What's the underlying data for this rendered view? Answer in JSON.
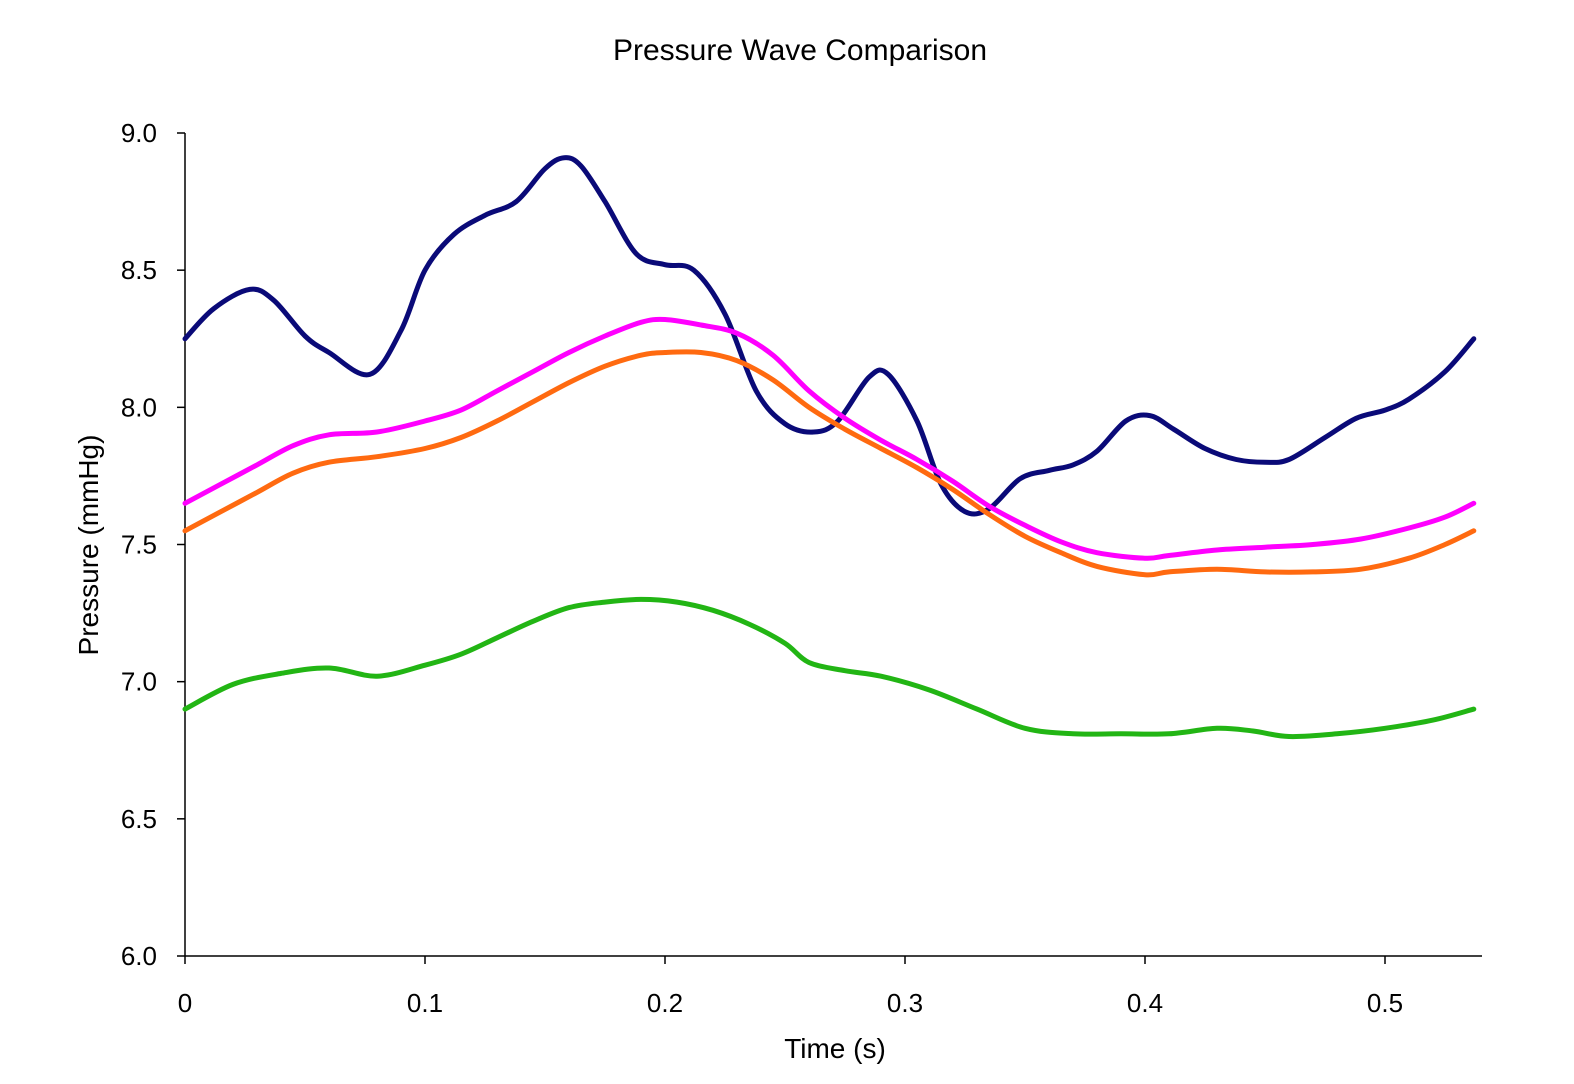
{
  "chart_data": {
    "type": "line",
    "title": "Pressure Wave Comparison",
    "xlabel": "Time (s)",
    "ylabel": "Pressure (mmHg)",
    "xlim": [
      0,
      0.54
    ],
    "ylim": [
      6.0,
      9.0
    ],
    "x_ticks": [
      "0",
      "0.1",
      "0.2",
      "0.3",
      "0.4",
      "0.5"
    ],
    "x_tick_values": [
      0,
      0.1,
      0.2,
      0.3,
      0.4,
      0.5
    ],
    "y_ticks": [
      "6.0",
      "6.5",
      "7.0",
      "7.5",
      "8.0",
      "8.5",
      "9.0"
    ],
    "y_tick_values": [
      6.0,
      6.5,
      7.0,
      7.5,
      8.0,
      8.5,
      9.0
    ],
    "grid": false,
    "legend": "none",
    "series": [
      {
        "color": "#0a0a78",
        "points": [
          [
            0,
            8.25
          ],
          [
            0.012,
            8.36
          ],
          [
            0.027,
            8.43
          ],
          [
            0.037,
            8.39
          ],
          [
            0.05,
            8.26
          ],
          [
            0.06,
            8.2
          ],
          [
            0.077,
            8.12
          ],
          [
            0.09,
            8.28
          ],
          [
            0.1,
            8.5
          ],
          [
            0.112,
            8.63
          ],
          [
            0.125,
            8.7
          ],
          [
            0.138,
            8.75
          ],
          [
            0.15,
            8.87
          ],
          [
            0.158,
            8.91
          ],
          [
            0.165,
            8.88
          ],
          [
            0.175,
            8.75
          ],
          [
            0.188,
            8.56
          ],
          [
            0.2,
            8.52
          ],
          [
            0.212,
            8.5
          ],
          [
            0.225,
            8.34
          ],
          [
            0.238,
            8.06
          ],
          [
            0.25,
            7.94
          ],
          [
            0.262,
            7.91
          ],
          [
            0.272,
            7.95
          ],
          [
            0.285,
            8.11
          ],
          [
            0.293,
            8.12
          ],
          [
            0.305,
            7.95
          ],
          [
            0.315,
            7.72
          ],
          [
            0.325,
            7.62
          ],
          [
            0.335,
            7.63
          ],
          [
            0.348,
            7.74
          ],
          [
            0.36,
            7.77
          ],
          [
            0.37,
            7.79
          ],
          [
            0.38,
            7.84
          ],
          [
            0.392,
            7.95
          ],
          [
            0.402,
            7.97
          ],
          [
            0.412,
            7.92
          ],
          [
            0.425,
            7.85
          ],
          [
            0.438,
            7.81
          ],
          [
            0.45,
            7.8
          ],
          [
            0.46,
            7.81
          ],
          [
            0.475,
            7.89
          ],
          [
            0.488,
            7.96
          ],
          [
            0.5,
            7.99
          ],
          [
            0.51,
            8.03
          ],
          [
            0.525,
            8.13
          ],
          [
            0.537,
            8.25
          ]
        ]
      },
      {
        "color": "#ff00ff",
        "points": [
          [
            0,
            7.65
          ],
          [
            0.015,
            7.72
          ],
          [
            0.03,
            7.79
          ],
          [
            0.045,
            7.86
          ],
          [
            0.06,
            7.9
          ],
          [
            0.08,
            7.91
          ],
          [
            0.1,
            7.95
          ],
          [
            0.115,
            7.99
          ],
          [
            0.13,
            8.06
          ],
          [
            0.145,
            8.13
          ],
          [
            0.16,
            8.2
          ],
          [
            0.175,
            8.26
          ],
          [
            0.19,
            8.31
          ],
          [
            0.2,
            8.32
          ],
          [
            0.215,
            8.3
          ],
          [
            0.23,
            8.27
          ],
          [
            0.245,
            8.19
          ],
          [
            0.26,
            8.06
          ],
          [
            0.275,
            7.96
          ],
          [
            0.29,
            7.88
          ],
          [
            0.305,
            7.81
          ],
          [
            0.32,
            7.73
          ],
          [
            0.335,
            7.64
          ],
          [
            0.35,
            7.57
          ],
          [
            0.365,
            7.51
          ],
          [
            0.38,
            7.47
          ],
          [
            0.4,
            7.45
          ],
          [
            0.41,
            7.46
          ],
          [
            0.43,
            7.48
          ],
          [
            0.45,
            7.49
          ],
          [
            0.47,
            7.5
          ],
          [
            0.49,
            7.52
          ],
          [
            0.51,
            7.56
          ],
          [
            0.525,
            7.6
          ],
          [
            0.537,
            7.65
          ]
        ]
      },
      {
        "color": "#ff6a10",
        "points": [
          [
            0,
            7.55
          ],
          [
            0.015,
            7.62
          ],
          [
            0.03,
            7.69
          ],
          [
            0.045,
            7.76
          ],
          [
            0.06,
            7.8
          ],
          [
            0.08,
            7.82
          ],
          [
            0.1,
            7.85
          ],
          [
            0.115,
            7.89
          ],
          [
            0.13,
            7.95
          ],
          [
            0.145,
            8.02
          ],
          [
            0.16,
            8.09
          ],
          [
            0.175,
            8.15
          ],
          [
            0.19,
            8.19
          ],
          [
            0.2,
            8.2
          ],
          [
            0.215,
            8.2
          ],
          [
            0.23,
            8.17
          ],
          [
            0.245,
            8.1
          ],
          [
            0.26,
            8.0
          ],
          [
            0.275,
            7.92
          ],
          [
            0.29,
            7.85
          ],
          [
            0.305,
            7.78
          ],
          [
            0.32,
            7.7
          ],
          [
            0.335,
            7.61
          ],
          [
            0.35,
            7.53
          ],
          [
            0.365,
            7.47
          ],
          [
            0.38,
            7.42
          ],
          [
            0.4,
            7.39
          ],
          [
            0.41,
            7.4
          ],
          [
            0.43,
            7.41
          ],
          [
            0.45,
            7.4
          ],
          [
            0.47,
            7.4
          ],
          [
            0.49,
            7.41
          ],
          [
            0.51,
            7.45
          ],
          [
            0.525,
            7.5
          ],
          [
            0.537,
            7.55
          ]
        ]
      },
      {
        "color": "#22b514",
        "points": [
          [
            0,
            6.9
          ],
          [
            0.02,
            6.99
          ],
          [
            0.04,
            7.03
          ],
          [
            0.06,
            7.05
          ],
          [
            0.08,
            7.02
          ],
          [
            0.1,
            7.06
          ],
          [
            0.115,
            7.1
          ],
          [
            0.13,
            7.16
          ],
          [
            0.145,
            7.22
          ],
          [
            0.16,
            7.27
          ],
          [
            0.175,
            7.29
          ],
          [
            0.19,
            7.3
          ],
          [
            0.205,
            7.29
          ],
          [
            0.22,
            7.26
          ],
          [
            0.235,
            7.21
          ],
          [
            0.25,
            7.14
          ],
          [
            0.26,
            7.07
          ],
          [
            0.275,
            7.04
          ],
          [
            0.29,
            7.02
          ],
          [
            0.31,
            6.97
          ],
          [
            0.33,
            6.9
          ],
          [
            0.35,
            6.83
          ],
          [
            0.37,
            6.81
          ],
          [
            0.39,
            6.81
          ],
          [
            0.41,
            6.81
          ],
          [
            0.43,
            6.83
          ],
          [
            0.445,
            6.82
          ],
          [
            0.46,
            6.8
          ],
          [
            0.48,
            6.81
          ],
          [
            0.5,
            6.83
          ],
          [
            0.52,
            6.86
          ],
          [
            0.537,
            6.9
          ]
        ]
      }
    ]
  }
}
